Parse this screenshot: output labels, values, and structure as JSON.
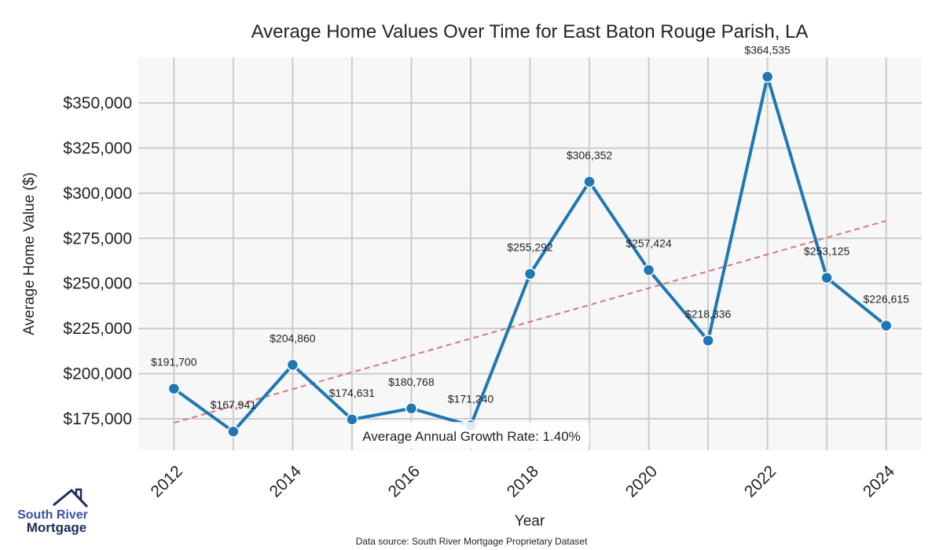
{
  "chart_data": {
    "type": "line",
    "title": "Average Home Values Over Time for East Baton Rouge Parish, LA",
    "xlabel": "Year",
    "ylabel": "Average Home Value ($)",
    "x": [
      2012,
      2013,
      2014,
      2015,
      2016,
      2017,
      2018,
      2019,
      2020,
      2021,
      2022,
      2023,
      2024
    ],
    "series": [
      {
        "name": "Average Home Value",
        "values": [
          191700,
          167941,
          204860,
          174631,
          180768,
          171240,
          255292,
          306352,
          257424,
          218336,
          364535,
          253125,
          226615
        ],
        "labels": [
          "$191,700",
          "$167,941",
          "$204,860",
          "$174,631",
          "$180,768",
          "$171,240",
          "$255,292",
          "$306,352",
          "$257,424",
          "$218,336",
          "$364,535",
          "$253,125",
          "$226,615"
        ],
        "color": "#1f77b4"
      }
    ],
    "trendline": {
      "name": "Trend",
      "start": [
        2012,
        172800
      ],
      "end": [
        2024,
        284700
      ],
      "color": "#d9767b",
      "style": "dashed"
    },
    "xticks": [
      2012,
      2014,
      2016,
      2018,
      2020,
      2022,
      2024
    ],
    "xtick_labels": [
      "2012",
      "2014",
      "2016",
      "2018",
      "2020",
      "2022",
      "2024"
    ],
    "yticks": [
      175000,
      200000,
      225000,
      250000,
      275000,
      300000,
      325000,
      350000
    ],
    "ytick_labels": [
      "$175,000",
      "$200,000",
      "$225,000",
      "$250,000",
      "$275,000",
      "$300,000",
      "$325,000",
      "$350,000"
    ],
    "xlim": [
      2011.4,
      2024.6
    ],
    "ylim": [
      157600,
      375250
    ],
    "grid": true,
    "annotation": "Average Annual Growth Rate: 1.40%"
  },
  "footer": {
    "source": "Data source: South River Mortgage Proprietary Dataset"
  },
  "logo": {
    "line1": "South River",
    "line2": "Mortgage"
  }
}
